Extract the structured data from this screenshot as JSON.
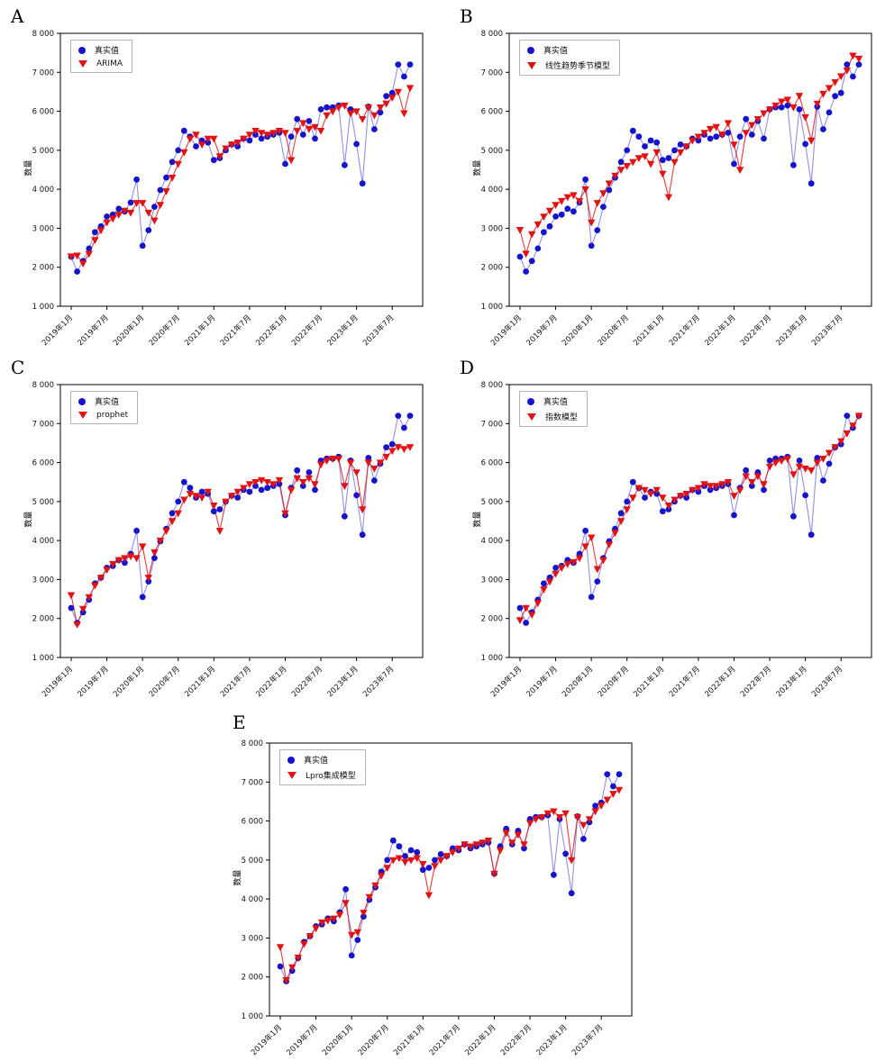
{
  "page": {
    "background": "#ffffff"
  },
  "colors": {
    "actual_marker": "#1414cc",
    "actual_line": "rgba(70,70,215,0.60)",
    "model_marker": "#e01212",
    "model_line": "rgba(224,24,24,0.85)",
    "axis": "#000000",
    "tick_text": "#111111"
  },
  "shared": {
    "ylabel": "数量",
    "actual_label": "真实值",
    "ylim": [
      1000,
      8000
    ],
    "y_tick_values": [
      1000,
      2000,
      3000,
      4000,
      5000,
      6000,
      7000,
      8000
    ],
    "y_tick_labels": [
      "1 000",
      "2 000",
      "3 000",
      "4 000",
      "5 000",
      "6 000",
      "7 000",
      "8 000"
    ],
    "x_tick_indices": [
      0,
      6,
      12,
      18,
      24,
      30,
      36,
      42,
      48,
      54
    ],
    "x_tick_labels": [
      "2019年1月",
      "2019年7月",
      "2020年1月",
      "2020年7月",
      "2021年1月",
      "2021年7月",
      "2022年1月",
      "2022年7月",
      "2023年1月",
      "2023年7月"
    ],
    "n_points": 58,
    "actual_values": [
      2270,
      1890,
      2160,
      2480,
      2900,
      3050,
      3300,
      3350,
      3500,
      3430,
      3660,
      4250,
      2550,
      2950,
      3550,
      3980,
      4300,
      4700,
      5000,
      5500,
      5350,
      5100,
      5250,
      5200,
      4750,
      4800,
      5000,
      5150,
      5100,
      5300,
      5250,
      5400,
      5300,
      5350,
      5400,
      5450,
      4650,
      5350,
      5800,
      5400,
      5750,
      5300,
      6050,
      6100,
      6100,
      6150,
      4620,
      6050,
      5160,
      4150,
      6120,
      5540,
      5970,
      6390,
      6470,
      7200,
      6890,
      7200
    ]
  },
  "chart_data": [
    {
      "panel": "A",
      "type": "line",
      "legend": {
        "actual": "真实值",
        "model": "ARIMA"
      },
      "model_values": [
        2280,
        2300,
        2100,
        2350,
        2700,
        2950,
        3150,
        3250,
        3350,
        3450,
        3400,
        3650,
        3650,
        3400,
        3200,
        3600,
        3950,
        4300,
        4650,
        4950,
        5300,
        5400,
        5150,
        5300,
        5300,
        4850,
        5050,
        5150,
        5200,
        5300,
        5400,
        5500,
        5450,
        5400,
        5450,
        5500,
        5450,
        4750,
        5500,
        5700,
        5550,
        5600,
        5500,
        5900,
        6000,
        6100,
        6150,
        5950,
        6000,
        5800,
        6100,
        5900,
        6100,
        6200,
        6350,
        6500,
        5950,
        6600
      ]
    },
    {
      "panel": "B",
      "type": "line",
      "legend": {
        "actual": "真实值",
        "model": "线性趋势季节模型"
      },
      "model_values": [
        2960,
        2350,
        2850,
        3100,
        3300,
        3450,
        3600,
        3700,
        3800,
        3850,
        3700,
        4000,
        3150,
        3650,
        3900,
        4150,
        4350,
        4500,
        4600,
        4700,
        4800,
        4850,
        4650,
        4950,
        4400,
        3800,
        4700,
        4950,
        5100,
        5250,
        5350,
        5450,
        5550,
        5600,
        5400,
        5700,
        5150,
        4500,
        5450,
        5650,
        5800,
        5950,
        6050,
        6150,
        6250,
        6300,
        6100,
        6400,
        5850,
        5250,
        6200,
        6450,
        6600,
        6750,
        6900,
        7050,
        7430,
        7350
      ]
    },
    {
      "panel": "C",
      "type": "line",
      "legend": {
        "actual": "真实值",
        "model": "prophet"
      },
      "model_values": [
        2600,
        1850,
        2250,
        2550,
        2850,
        3050,
        3250,
        3400,
        3500,
        3550,
        3600,
        3550,
        3850,
        3050,
        3700,
        4000,
        4250,
        4500,
        4700,
        5050,
        5200,
        5150,
        5100,
        5250,
        4900,
        4250,
        5000,
        5150,
        5250,
        5350,
        5450,
        5500,
        5550,
        5500,
        5450,
        5550,
        4700,
        5300,
        5600,
        5500,
        5600,
        5450,
        5950,
        6050,
        6100,
        6100,
        5400,
        6000,
        5750,
        4800,
        6000,
        5850,
        6000,
        6150,
        6300,
        6400,
        6350,
        6400
      ]
    },
    {
      "panel": "D",
      "type": "line",
      "legend": {
        "actual": "真实值",
        "model": "指数模型"
      },
      "model_values": [
        1960,
        2270,
        2100,
        2400,
        2750,
        2950,
        3150,
        3300,
        3400,
        3450,
        3550,
        3850,
        4080,
        3270,
        3500,
        3900,
        4200,
        4500,
        4800,
        5100,
        5350,
        5300,
        5200,
        5300,
        5100,
        4900,
        5050,
        5150,
        5200,
        5300,
        5350,
        5450,
        5400,
        5400,
        5450,
        5500,
        5150,
        5300,
        5650,
        5500,
        5650,
        5450,
        5900,
        6000,
        6050,
        6100,
        5700,
        5900,
        5850,
        5800,
        6000,
        6100,
        6250,
        6400,
        6550,
        6750,
        6950,
        7200
      ]
    },
    {
      "panel": "E",
      "type": "line",
      "legend": {
        "actual": "真实值",
        "model": "Lpro集成模型"
      },
      "model_values": [
        2770,
        1920,
        2250,
        2500,
        2850,
        3050,
        3250,
        3400,
        3450,
        3500,
        3600,
        3900,
        3080,
        3150,
        3650,
        4050,
        4350,
        4600,
        4800,
        5000,
        5050,
        4950,
        5000,
        5050,
        4900,
        4100,
        4850,
        5000,
        5100,
        5200,
        5300,
        5400,
        5350,
        5400,
        5450,
        5500,
        4650,
        5250,
        5700,
        5450,
        5650,
        5400,
        5950,
        6050,
        6100,
        6200,
        6250,
        6100,
        6200,
        5000,
        6100,
        5900,
        6050,
        6250,
        6400,
        6550,
        6700,
        6800
      ]
    }
  ]
}
